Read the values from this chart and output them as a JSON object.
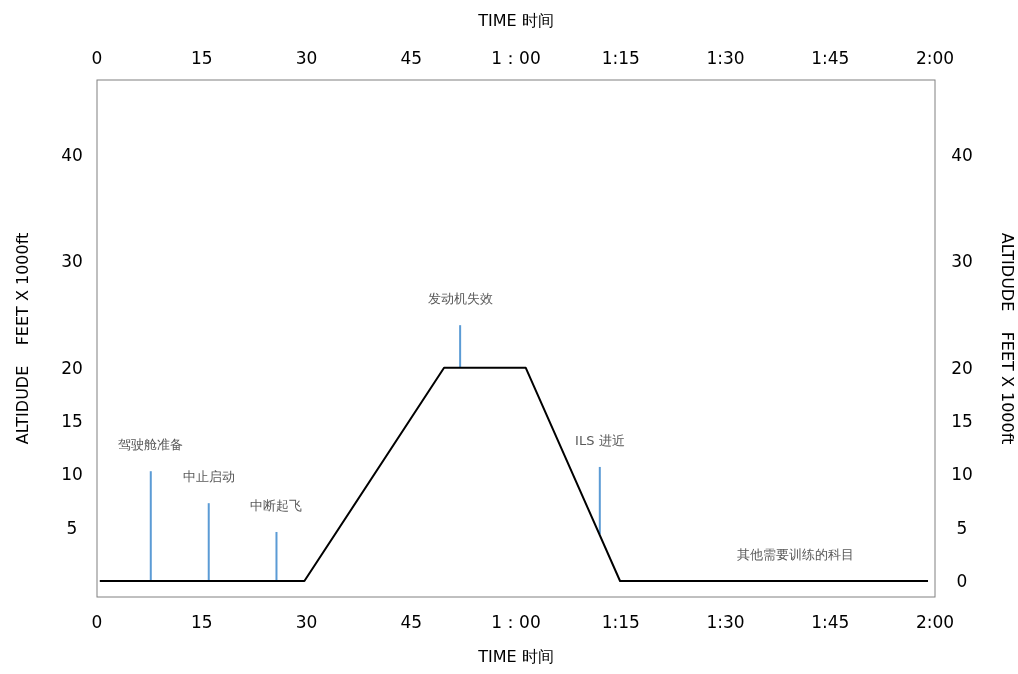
{
  "chart_data": {
    "type": "line",
    "xlabel": "TIME 时间",
    "x2label": "TIME 时间",
    "ylabel": "ALTIDUDE    FEET X 1000ft",
    "y2label": "ALTIDUDE    FEET X 1000ft",
    "xlim": [
      0,
      120
    ],
    "x2lim": [
      0,
      120
    ],
    "xticks": [
      0,
      15,
      30,
      45,
      {
        "value": 60,
        "label": "1：00"
      },
      {
        "value": 75,
        "label": "1:15"
      },
      {
        "value": 90,
        "label": "1:30"
      },
      {
        "value": 105,
        "label": "1:45"
      },
      {
        "value": 120,
        "label": "2:00"
      }
    ],
    "x2ticks": [
      0,
      15,
      30,
      45,
      {
        "value": 60,
        "label": "1：00"
      },
      {
        "value": 75,
        "label": "1:15"
      },
      {
        "value": 90,
        "label": "1:30"
      },
      {
        "value": 105,
        "label": "1:45"
      },
      {
        "value": 120,
        "label": "2:00"
      }
    ],
    "ylim": [
      -1.5,
      47
    ],
    "y2lim": [
      -1.5,
      47
    ],
    "yticks": [
      5,
      10,
      15,
      20,
      30,
      40
    ],
    "y2ticks": [
      0,
      5,
      10,
      15,
      20,
      30,
      40
    ],
    "series": [
      {
        "color": "#000000",
        "x": [
          0.4,
          29.7,
          49.7,
          61.4,
          74.9,
          119
        ],
        "values": [
          0,
          0,
          20,
          20,
          0,
          0
        ]
      },
      {
        "type": "bar",
        "color": "#5b9bd5",
        "x": [
          7.7,
          16,
          25.7,
          52,
          72
        ],
        "base": [
          0,
          0,
          0,
          20,
          4.4
        ],
        "values": [
          10.3,
          7.3,
          4.6,
          4,
          6.3
        ]
      }
    ],
    "annotations": [
      {
        "text": "驾驶舱准备",
        "x": 7.7,
        "y": 10.3
      },
      {
        "text": "中止启动",
        "x": 16,
        "y": 7.3
      },
      {
        "text": "中断起飞",
        "x": 25.7,
        "y": 4.6
      },
      {
        "text": "发动机失效",
        "x": 52,
        "y": 24
      },
      {
        "text": "ILS 进近",
        "x": 72,
        "y": 10.7
      },
      {
        "text": "其他需要训练的科目",
        "x": 100,
        "y": 0
      }
    ]
  }
}
